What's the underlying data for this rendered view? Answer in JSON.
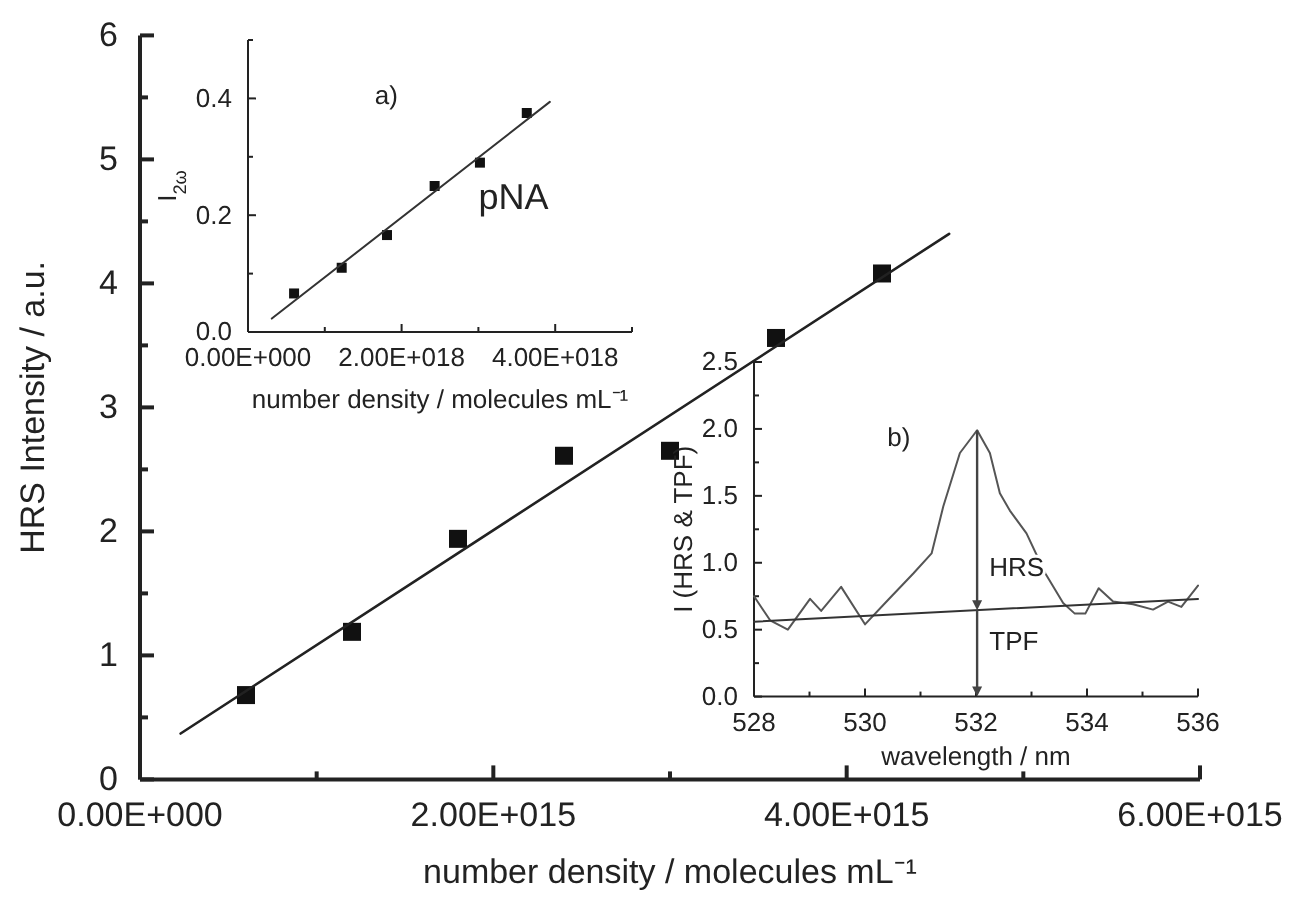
{
  "chart_data": [
    {
      "type": "scatter",
      "xlabel": "number density / molecules mL⁻¹",
      "ylabel": "HRS Intensity / a.u.",
      "marker": "square",
      "line_style": "solid",
      "xlim": [
        0,
        6000000000000000.0
      ],
      "ylim": [
        0,
        6
      ],
      "xticks": [
        {
          "value": 0,
          "label": "0.00E+000"
        },
        {
          "value": 1000000000000000.0,
          "label": null
        },
        {
          "value": 2000000000000000.0,
          "label": "2.00E+015"
        },
        {
          "value": 3000000000000000.0,
          "label": null
        },
        {
          "value": 4000000000000000.0,
          "label": "4.00E+015"
        },
        {
          "value": 5000000000000000.0,
          "label": null
        },
        {
          "value": 6000000000000000.0,
          "label": "6.00E+015"
        }
      ],
      "yticks": [
        0,
        {
          "value": 0.5,
          "label": null
        },
        1,
        {
          "value": 1.5,
          "label": null
        },
        2,
        {
          "value": 2.5,
          "label": null
        },
        3,
        {
          "value": 3.5,
          "label": null
        },
        4,
        {
          "value": 4.5,
          "label": null
        },
        5,
        {
          "value": 5.5,
          "label": null
        },
        6
      ],
      "series": [
        {
          "color": "#111111",
          "x": [
            600000000000000.0,
            1200000000000000.0,
            1800000000000000.0,
            2400000000000000.0,
            3000000000000000.0,
            3600000000000000.0,
            4200000000000000.0
          ],
          "values": [
            0.68,
            1.19,
            1.94,
            2.61,
            2.65,
            3.56,
            4.08
          ]
        },
        {
          "type": "line",
          "color": "#222222",
          "marker": "none",
          "x": [
            230000000000000.0,
            4580000000000000.0
          ],
          "values": [
            0.37,
            4.4
          ]
        }
      ]
    },
    {
      "type": "scatter",
      "xlabel": "number density / molecules mL⁻¹",
      "ylabel": "I$_{2ω}$",
      "marker": "square",
      "line_style": "solid",
      "xlim": [
        0,
        5e+18
      ],
      "ylim": [
        0,
        0.5
      ],
      "xticks": [
        {
          "value": 0,
          "label": "0.00E+000"
        },
        {
          "value": 1e+18,
          "label": null
        },
        {
          "value": 2e+18,
          "label": "2.00E+018"
        },
        {
          "value": 3e+18,
          "label": null
        },
        {
          "value": 4e+18,
          "label": "4.00E+018"
        },
        {
          "value": 5e+18,
          "label": null
        }
      ],
      "yticks": [
        {
          "value": 0,
          "label": "0.0"
        },
        {
          "value": 0.1,
          "label": null
        },
        {
          "value": 0.2,
          "label": "0.2"
        },
        {
          "value": 0.3,
          "label": null
        },
        {
          "value": 0.4,
          "label": "0.4"
        },
        {
          "value": 0.5,
          "label": null
        }
      ],
      "annotations": [
        "a)",
        "pNA"
      ],
      "series": [
        {
          "color": "#111111",
          "x": [
            6e+17,
            1.22e+18,
            1.81e+18,
            2.43e+18,
            3.02e+18,
            3.63e+18
          ],
          "values": [
            0.066,
            0.11,
            0.166,
            0.25,
            0.29,
            0.375
          ]
        },
        {
          "type": "line",
          "color": "#333333",
          "marker": "none",
          "x": [
            3.1e+17,
            3.93e+18
          ],
          "values": [
            0.023,
            0.394
          ]
        }
      ]
    },
    {
      "type": "line",
      "xlabel": "wavelength / nm",
      "ylabel": "I (HRS & TPF)",
      "marker": "none",
      "line_style": "solid",
      "xlim": [
        528,
        536
      ],
      "ylim": [
        0,
        2.5
      ],
      "xticks": [
        528,
        {
          "value": 529,
          "label": null
        },
        530,
        {
          "value": 531,
          "label": null
        },
        532,
        {
          "value": 533,
          "label": null
        },
        534,
        {
          "value": 535,
          "label": null
        },
        536
      ],
      "yticks": [
        {
          "value": 0,
          "label": "0.0"
        },
        {
          "value": 0.25,
          "label": null
        },
        {
          "value": 0.5,
          "label": "0.5"
        },
        {
          "value": 0.75,
          "label": null
        },
        {
          "value": 1,
          "label": "1.0"
        },
        {
          "value": 1.25,
          "label": null
        },
        {
          "value": 1.5,
          "label": "1.5"
        },
        {
          "value": 1.75,
          "label": null
        },
        {
          "value": 2,
          "label": "2.0"
        },
        {
          "value": 2.25,
          "label": null
        },
        {
          "value": 2.5,
          "label": "2.5"
        }
      ],
      "annotations": [
        "b)",
        "HRS",
        "TPF"
      ],
      "series": [
        {
          "color": "#555555",
          "x": [
            528,
            528.29,
            528.61,
            529.01,
            529.21,
            529.57,
            530.0,
            530.41,
            530.87,
            531.2,
            531.41,
            531.71,
            532.02,
            532.25,
            532.43,
            532.61,
            532.91,
            533.25,
            533.57,
            533.78,
            533.97,
            534.21,
            534.47,
            534.83,
            535.19,
            535.46,
            535.7,
            536.0
          ],
          "values": [
            0.75,
            0.57,
            0.5,
            0.73,
            0.64,
            0.82,
            0.54,
            0.72,
            0.92,
            1.07,
            1.42,
            1.82,
            1.99,
            1.82,
            1.52,
            1.39,
            1.22,
            0.92,
            0.7,
            0.62,
            0.62,
            0.81,
            0.71,
            0.69,
            0.65,
            0.71,
            0.67,
            0.83
          ]
        },
        {
          "type": "line",
          "color": "#333333",
          "x": [
            528,
            536
          ],
          "values": [
            0.56,
            0.73
          ]
        }
      ]
    }
  ]
}
